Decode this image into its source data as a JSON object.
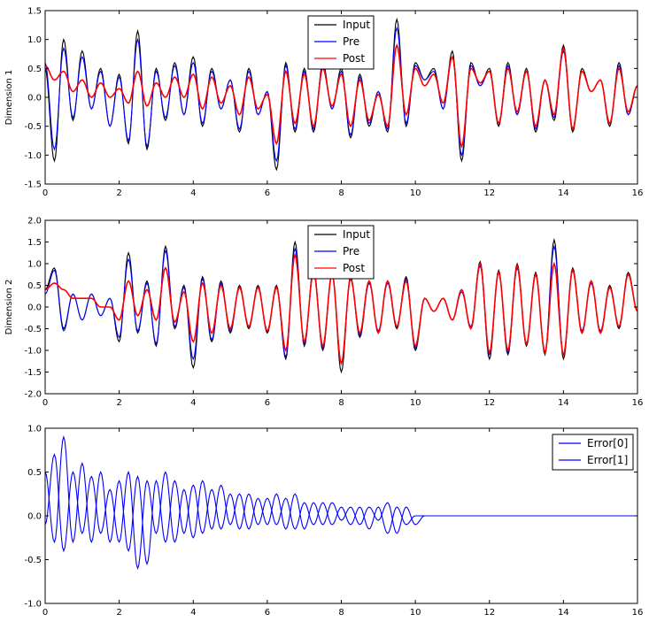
{
  "chart_data": [
    {
      "type": "line",
      "ylabel": "Dimension 1",
      "xlim": [
        0,
        16
      ],
      "ylim": [
        -1.5,
        1.5
      ],
      "xticks": [
        "0",
        "2",
        "4",
        "6",
        "8",
        "10",
        "12",
        "14",
        "16"
      ],
      "yticks": [
        "-1.5",
        "-1.0",
        "-0.5",
        "0.0",
        "0.5",
        "1.0",
        "1.5"
      ],
      "legend_position": "top-center",
      "x": [
        0,
        0.25,
        0.5,
        0.75,
        1,
        1.25,
        1.5,
        1.75,
        2,
        2.25,
        2.5,
        2.75,
        3,
        3.25,
        3.5,
        3.75,
        4,
        4.25,
        4.5,
        4.75,
        5,
        5.25,
        5.5,
        5.75,
        6,
        6.25,
        6.5,
        6.75,
        7,
        7.25,
        7.5,
        7.75,
        8,
        8.25,
        8.5,
        8.75,
        9,
        9.25,
        9.5,
        9.75,
        10,
        10.25,
        10.5,
        10.75,
        11,
        11.25,
        11.5,
        11.75,
        12,
        12.25,
        12.5,
        12.75,
        13,
        13.25,
        13.5,
        13.75,
        14,
        14.25,
        14.5,
        14.75,
        15,
        15.25,
        15.5,
        15.75,
        16
      ],
      "series": [
        {
          "name": "Input",
          "color": "#000000",
          "values": [
            0.5,
            -1.1,
            1.0,
            -0.4,
            0.8,
            -0.2,
            0.5,
            -0.5,
            0.4,
            -0.8,
            1.15,
            -0.9,
            0.5,
            -0.4,
            0.6,
            -0.3,
            0.7,
            -0.5,
            0.5,
            -0.2,
            0.3,
            -0.6,
            0.5,
            -0.3,
            0.1,
            -1.25,
            0.6,
            -0.6,
            0.5,
            -0.6,
            0.6,
            -0.2,
            0.5,
            -0.7,
            0.4,
            -0.5,
            0.1,
            -0.6,
            1.35,
            -0.5,
            0.6,
            0.3,
            0.5,
            -0.2,
            0.8,
            -1.1,
            0.6,
            0.2,
            0.5,
            -0.5,
            0.6,
            -0.3,
            0.5,
            -0.6,
            0.3,
            -0.4,
            0.9,
            -0.6,
            0.5,
            0.1,
            0.3,
            -0.5,
            0.6,
            -0.3,
            0.2
          ]
        },
        {
          "name": "Pre",
          "color": "#0000ff",
          "values": [
            0.6,
            -0.9,
            0.85,
            -0.35,
            0.7,
            -0.2,
            0.45,
            -0.5,
            0.35,
            -0.75,
            1.0,
            -0.85,
            0.45,
            -0.35,
            0.55,
            -0.3,
            0.6,
            -0.45,
            0.45,
            -0.2,
            0.3,
            -0.55,
            0.45,
            -0.3,
            0.1,
            -1.1,
            0.55,
            -0.55,
            0.45,
            -0.55,
            0.55,
            -0.2,
            0.45,
            -0.65,
            0.35,
            -0.45,
            0.1,
            -0.55,
            1.2,
            -0.45,
            0.55,
            0.3,
            0.45,
            -0.2,
            0.7,
            -1.0,
            0.55,
            0.2,
            0.45,
            -0.45,
            0.55,
            -0.3,
            0.45,
            -0.55,
            0.3,
            -0.35,
            0.8,
            -0.55,
            0.45,
            0.1,
            0.3,
            -0.45,
            0.55,
            -0.3,
            0.2
          ]
        },
        {
          "name": "Post",
          "color": "#ff0000",
          "values": [
            0.55,
            0.3,
            0.45,
            0.1,
            0.3,
            0.0,
            0.25,
            0.0,
            0.15,
            -0.1,
            0.45,
            -0.15,
            0.25,
            0.0,
            0.35,
            0.0,
            0.4,
            -0.2,
            0.35,
            -0.1,
            0.2,
            -0.3,
            0.35,
            -0.2,
            0.05,
            -0.8,
            0.45,
            -0.45,
            0.4,
            -0.5,
            0.5,
            -0.15,
            0.4,
            -0.5,
            0.3,
            -0.4,
            0.05,
            -0.5,
            0.9,
            -0.3,
            0.5,
            0.2,
            0.4,
            -0.1,
            0.7,
            -0.85,
            0.5,
            0.25,
            0.45,
            -0.45,
            0.5,
            -0.25,
            0.45,
            -0.5,
            0.3,
            -0.3,
            0.85,
            -0.55,
            0.45,
            0.1,
            0.3,
            -0.45,
            0.5,
            -0.25,
            0.2
          ]
        }
      ]
    },
    {
      "type": "line",
      "ylabel": "Dimension 2",
      "xlim": [
        0,
        16
      ],
      "ylim": [
        -2.0,
        2.0
      ],
      "xticks": [
        "0",
        "2",
        "4",
        "6",
        "8",
        "10",
        "12",
        "14",
        "16"
      ],
      "yticks": [
        "-2.0",
        "-1.5",
        "-1.0",
        "-0.5",
        "0.0",
        "0.5",
        "1.0",
        "1.5",
        "2.0"
      ],
      "legend_position": "top-center",
      "x": [
        0,
        0.25,
        0.5,
        0.75,
        1,
        1.25,
        1.5,
        1.75,
        2,
        2.25,
        2.5,
        2.75,
        3,
        3.25,
        3.5,
        3.75,
        4,
        4.25,
        4.5,
        4.75,
        5,
        5.25,
        5.5,
        5.75,
        6,
        6.25,
        6.5,
        6.75,
        7,
        7.25,
        7.5,
        7.75,
        8,
        8.25,
        8.5,
        8.75,
        9,
        9.25,
        9.5,
        9.75,
        10,
        10.25,
        10.5,
        10.75,
        11,
        11.25,
        11.5,
        11.75,
        12,
        12.25,
        12.5,
        12.75,
        13,
        13.25,
        13.5,
        13.75,
        14,
        14.25,
        14.5,
        14.75,
        15,
        15.25,
        15.5,
        15.75,
        16
      ],
      "series": [
        {
          "name": "Input",
          "color": "#000000",
          "values": [
            0.4,
            0.9,
            -0.5,
            0.3,
            -0.3,
            0.3,
            -0.2,
            0.2,
            -0.8,
            1.25,
            -0.6,
            0.6,
            -0.9,
            1.4,
            -0.5,
            0.5,
            -1.4,
            0.7,
            -0.8,
            0.6,
            -0.6,
            0.5,
            -0.5,
            0.5,
            -0.6,
            0.5,
            -1.2,
            1.5,
            -0.9,
            0.9,
            -1.0,
            0.8,
            -1.5,
            0.7,
            -0.7,
            0.6,
            -0.6,
            0.6,
            -0.5,
            0.7,
            -1.0,
            0.2,
            -0.1,
            0.2,
            -0.3,
            0.4,
            -0.5,
            1.05,
            -1.2,
            0.85,
            -1.1,
            1.0,
            -0.9,
            0.8,
            -1.1,
            1.55,
            -1.2,
            0.9,
            -0.6,
            0.6,
            -0.6,
            0.5,
            -0.5,
            0.8,
            -0.1
          ]
        },
        {
          "name": "Pre",
          "color": "#0000ff",
          "values": [
            0.3,
            0.85,
            -0.55,
            0.3,
            -0.3,
            0.3,
            -0.2,
            0.2,
            -0.7,
            1.1,
            -0.55,
            0.55,
            -0.85,
            1.3,
            -0.45,
            0.45,
            -1.2,
            0.65,
            -0.75,
            0.55,
            -0.55,
            0.45,
            -0.45,
            0.45,
            -0.55,
            0.45,
            -1.15,
            1.35,
            -0.85,
            0.85,
            -0.95,
            0.75,
            -1.3,
            0.65,
            -0.65,
            0.55,
            -0.55,
            0.55,
            -0.45,
            0.65,
            -0.95,
            0.2,
            -0.1,
            0.2,
            -0.3,
            0.35,
            -0.45,
            0.95,
            -1.1,
            0.8,
            -1.05,
            0.9,
            -0.85,
            0.75,
            -1.05,
            1.4,
            -1.1,
            0.85,
            -0.55,
            0.55,
            -0.55,
            0.45,
            -0.45,
            0.75,
            -0.1
          ]
        },
        {
          "name": "Post",
          "color": "#ff0000",
          "values": [
            0.4,
            0.55,
            0.4,
            0.2,
            0.2,
            0.2,
            0.0,
            0.0,
            -0.3,
            0.6,
            -0.2,
            0.4,
            -0.3,
            0.9,
            -0.35,
            0.35,
            -0.8,
            0.55,
            -0.6,
            0.5,
            -0.5,
            0.45,
            -0.45,
            0.45,
            -0.55,
            0.45,
            -1.0,
            1.2,
            -0.8,
            0.8,
            -0.9,
            0.75,
            -1.3,
            0.65,
            -0.6,
            0.6,
            -0.6,
            0.6,
            -0.45,
            0.6,
            -0.9,
            0.2,
            -0.1,
            0.2,
            -0.3,
            0.4,
            -0.5,
            1.0,
            -1.05,
            0.8,
            -1.0,
            0.95,
            -0.85,
            0.75,
            -1.05,
            1.0,
            -1.1,
            0.85,
            -0.6,
            0.6,
            -0.6,
            0.45,
            -0.45,
            0.75,
            -0.1
          ]
        }
      ]
    },
    {
      "type": "line",
      "ylabel": "",
      "xlim": [
        0,
        16
      ],
      "ylim": [
        -1.0,
        1.0
      ],
      "xticks": [
        "0",
        "2",
        "4",
        "6",
        "8",
        "10",
        "12",
        "14",
        "16"
      ],
      "yticks": [
        "-1.0",
        "-0.5",
        "0.0",
        "0.5",
        "1.0"
      ],
      "legend_position": "top-right",
      "x": [
        0,
        0.25,
        0.5,
        0.75,
        1,
        1.25,
        1.5,
        1.75,
        2,
        2.25,
        2.5,
        2.75,
        3,
        3.25,
        3.5,
        3.75,
        4,
        4.25,
        4.5,
        4.75,
        5,
        5.25,
        5.5,
        5.75,
        6,
        6.25,
        6.5,
        6.75,
        7,
        7.25,
        7.5,
        7.75,
        8,
        8.25,
        8.5,
        8.75,
        9,
        9.25,
        9.5,
        9.75,
        10,
        10.25,
        10.5,
        10.75,
        11,
        11.25,
        11.5,
        11.75,
        12,
        12.25,
        12.5,
        12.75,
        13,
        13.25,
        13.5,
        13.75,
        14,
        14.25,
        14.5,
        14.75,
        15,
        15.25,
        15.5,
        15.75,
        16
      ],
      "series": [
        {
          "name": "Error[0]",
          "color": "#0000ff",
          "values": [
            0.5,
            -0.3,
            0.9,
            -0.3,
            0.6,
            -0.3,
            0.5,
            -0.3,
            0.4,
            -0.4,
            0.45,
            -0.55,
            0.4,
            -0.3,
            0.4,
            -0.2,
            0.35,
            -0.2,
            0.3,
            -0.15,
            0.25,
            -0.15,
            0.25,
            -0.1,
            0.2,
            -0.1,
            0.2,
            -0.15,
            0.15,
            -0.1,
            0.15,
            -0.1,
            0.1,
            -0.1,
            0.1,
            -0.15,
            0.1,
            -0.2,
            0.1,
            -0.1,
            0.0,
            0.0,
            0.0,
            0.0,
            0.0,
            0.0,
            0.0,
            0.0,
            0.0,
            0.0,
            0.0,
            0.0,
            0.0,
            0.0,
            0.0,
            0.0,
            0.0,
            0.0,
            0.0,
            0.0,
            0.0,
            0.0,
            0.0,
            0.0,
            0.0
          ]
        },
        {
          "name": "Error[1]",
          "color": "#0000ff",
          "values": [
            -0.1,
            0.7,
            -0.4,
            0.5,
            -0.2,
            0.45,
            -0.2,
            0.3,
            -0.3,
            0.5,
            -0.6,
            0.4,
            -0.2,
            0.5,
            -0.3,
            0.3,
            -0.25,
            0.4,
            -0.15,
            0.35,
            -0.1,
            0.25,
            -0.15,
            0.2,
            -0.1,
            0.25,
            -0.15,
            0.25,
            -0.15,
            0.15,
            -0.1,
            0.15,
            -0.05,
            0.1,
            -0.1,
            0.1,
            -0.05,
            0.15,
            -0.2,
            0.1,
            -0.1,
            0.0,
            0.0,
            0.0,
            0.0,
            0.0,
            0.0,
            0.0,
            0.0,
            0.0,
            0.0,
            0.0,
            0.0,
            0.0,
            0.0,
            0.0,
            0.0,
            0.0,
            0.0,
            0.0,
            0.0,
            0.0,
            0.0,
            0.0,
            0.0
          ]
        }
      ]
    }
  ]
}
